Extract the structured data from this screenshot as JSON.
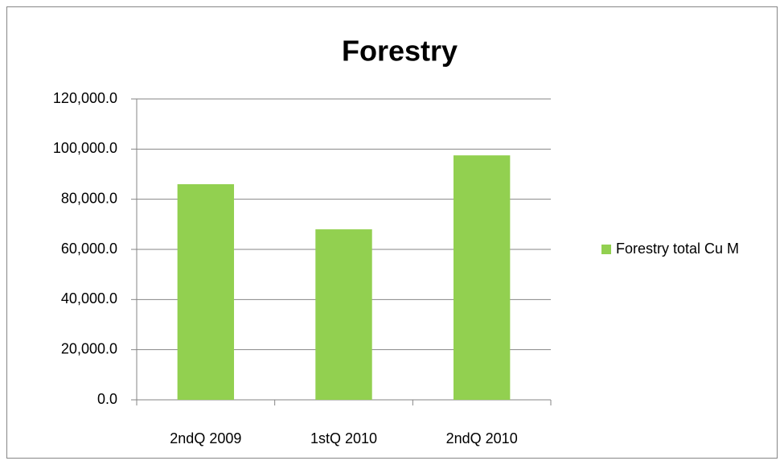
{
  "chart_data": {
    "type": "bar",
    "title": "Forestry",
    "categories": [
      "2ndQ 2009",
      "1stQ 2010",
      "2ndQ 2010"
    ],
    "series": [
      {
        "name": "Forestry total Cu M",
        "color": "#92d050",
        "values": [
          86000,
          68000,
          97500
        ]
      }
    ],
    "ylim": [
      0,
      120000
    ],
    "yticks": [
      {
        "value": 0,
        "label": "0.0"
      },
      {
        "value": 20000,
        "label": "20,000.0"
      },
      {
        "value": 40000,
        "label": "40,000.0"
      },
      {
        "value": 60000,
        "label": "60,000.0"
      },
      {
        "value": 80000,
        "label": "80,000.0"
      },
      {
        "value": 100000,
        "label": "100,000.0"
      },
      {
        "value": 120000,
        "label": "120,000.0"
      }
    ],
    "grid": true,
    "legend": "right"
  }
}
